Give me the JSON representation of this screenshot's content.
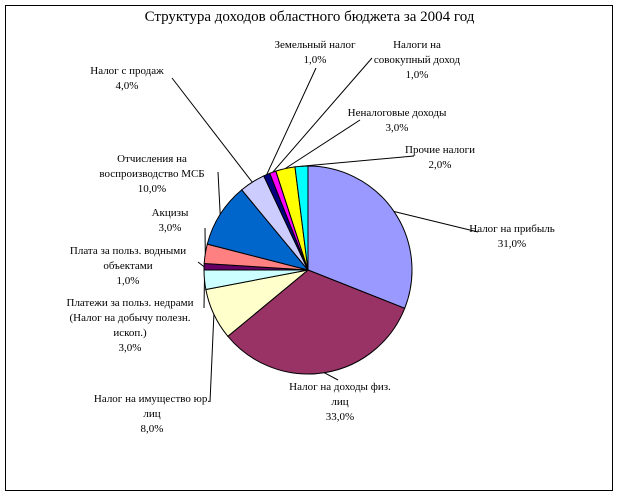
{
  "chart_data": {
    "type": "pie",
    "title": "Структура доходов областного бюджета за  2004 год",
    "categories": [
      "Налог на прибыль",
      "Налог на доходы физ. лиц",
      "Налог на имущество юр. лиц",
      "Платежи за польз. недрами (Налог на добычу полезн. ископ.)",
      "Плата за польз. водными объектами",
      "Акцизы",
      "Отчисления на воспроизводство МСБ",
      "Налог с продаж",
      "Земельный налог",
      "Налоги на совокупный доход",
      "Неналоговые доходы",
      "Прочие налоги"
    ],
    "values": [
      31,
      33,
      8,
      3,
      1,
      3,
      10,
      4,
      1,
      1,
      3,
      2
    ],
    "value_labels": [
      "31,0%",
      "33,0%",
      "8,0%",
      "3,0%",
      "1,0%",
      "3,0%",
      "10,0%",
      "4,0%",
      "1,0%",
      "1,0%",
      "3,0%",
      "2,0%"
    ],
    "colors": [
      "#9999FF",
      "#993366",
      "#FFFFCC",
      "#CCFFFF",
      "#660066",
      "#FF8080",
      "#0066CC",
      "#CCCCFF",
      "#000080",
      "#FF00FF",
      "#FFFF00",
      "#00FFFF"
    ]
  }
}
